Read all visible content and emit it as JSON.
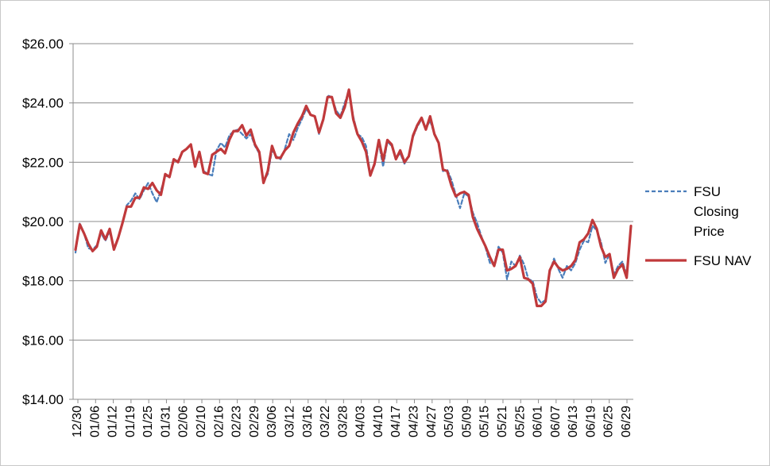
{
  "chart_data": {
    "type": "line",
    "title": "",
    "xlabel": "",
    "ylabel": "",
    "ylim": [
      14,
      26
    ],
    "y_ticks": [
      14,
      16,
      18,
      20,
      22,
      24,
      26
    ],
    "y_tick_labels": [
      "$14.00",
      "$16.00",
      "$18.00",
      "$20.00",
      "$22.00",
      "$24.00",
      "$26.00"
    ],
    "x_tick_labels": [
      "12/30",
      "01/06",
      "01/12",
      "01/19",
      "01/25",
      "01/31",
      "02/06",
      "02/10",
      "02/16",
      "02/23",
      "02/29",
      "03/06",
      "03/12",
      "03/16",
      "03/22",
      "03/28",
      "04/03",
      "04/10",
      "04/17",
      "04/23",
      "04/27",
      "05/03",
      "05/09",
      "05/15",
      "05/21",
      "05/25",
      "06/01",
      "06/07",
      "06/13",
      "06/19",
      "06/25",
      "06/29"
    ],
    "grid": true,
    "legend_position": "right",
    "series": [
      {
        "name": "FSU Closing Price",
        "color": "#4a7ebb",
        "dash": "dashed",
        "values": [
          18.95,
          19.95,
          19.6,
          19.1,
          19.05,
          19.2,
          19.6,
          19.35,
          19.65,
          19.1,
          19.45,
          19.95,
          20.55,
          20.7,
          20.95,
          20.75,
          21.05,
          21.3,
          20.95,
          20.65,
          21.05,
          21.55,
          21.5,
          22.05,
          22.05,
          22.35,
          22.45,
          22.6,
          21.9,
          22.3,
          21.7,
          21.6,
          21.55,
          22.4,
          22.65,
          22.5,
          22.9,
          23.05,
          23.1,
          22.95,
          22.8,
          22.95,
          22.55,
          22.3,
          21.35,
          21.6,
          22.4,
          22.2,
          22.1,
          22.45,
          22.95,
          22.75,
          23.15,
          23.45,
          23.8,
          23.6,
          23.55,
          22.95,
          23.45,
          24.25,
          24.2,
          23.75,
          23.55,
          24.0,
          24.4,
          23.55,
          22.95,
          22.85,
          22.55,
          21.6,
          21.9,
          22.65,
          21.85,
          22.7,
          22.55,
          22.15,
          22.3,
          21.95,
          22.2,
          22.85,
          23.2,
          23.45,
          23.15,
          23.4,
          22.95,
          22.65,
          21.7,
          21.75,
          21.4,
          20.9,
          20.45,
          20.95,
          20.85,
          20.3,
          19.95,
          19.5,
          19.1,
          18.6,
          18.55,
          19.15,
          18.95,
          18.05,
          18.65,
          18.5,
          18.85,
          18.55,
          18.05,
          18.0,
          17.45,
          17.25,
          17.35,
          18.3,
          18.75,
          18.4,
          18.1,
          18.5,
          18.35,
          18.6,
          19.05,
          19.35,
          19.3,
          19.85,
          19.7,
          19.3,
          18.6,
          18.9,
          18.2,
          18.5,
          18.65,
          18.2,
          19.85
        ]
      },
      {
        "name": "FSU NAV",
        "color": "#c0393b",
        "dash": "solid",
        "values": [
          19.05,
          19.9,
          19.6,
          19.25,
          19.0,
          19.15,
          19.7,
          19.4,
          19.75,
          19.05,
          19.45,
          19.95,
          20.5,
          20.5,
          20.8,
          20.8,
          21.15,
          21.1,
          21.3,
          21.05,
          20.9,
          21.6,
          21.5,
          22.1,
          22.0,
          22.35,
          22.45,
          22.6,
          21.85,
          22.35,
          21.65,
          21.6,
          22.25,
          22.35,
          22.45,
          22.3,
          22.75,
          23.05,
          23.05,
          23.25,
          22.9,
          23.1,
          22.6,
          22.35,
          21.3,
          21.7,
          22.55,
          22.15,
          22.15,
          22.4,
          22.55,
          23.0,
          23.3,
          23.55,
          23.9,
          23.6,
          23.55,
          23.0,
          23.45,
          24.2,
          24.2,
          23.65,
          23.5,
          23.85,
          24.45,
          23.45,
          22.95,
          22.7,
          22.35,
          21.55,
          21.95,
          22.75,
          22.05,
          22.75,
          22.6,
          22.1,
          22.4,
          22.0,
          22.2,
          22.9,
          23.25,
          23.5,
          23.1,
          23.55,
          22.95,
          22.65,
          21.75,
          21.7,
          21.2,
          20.85,
          20.95,
          21.0,
          20.9,
          20.15,
          19.75,
          19.45,
          19.15,
          18.8,
          18.5,
          19.05,
          19.05,
          18.35,
          18.4,
          18.5,
          18.8,
          18.1,
          18.05,
          17.9,
          17.15,
          17.15,
          17.3,
          18.35,
          18.65,
          18.45,
          18.35,
          18.4,
          18.5,
          18.7,
          19.3,
          19.4,
          19.6,
          20.05,
          19.75,
          19.15,
          18.8,
          18.9,
          18.1,
          18.4,
          18.55,
          18.1,
          19.85
        ]
      }
    ]
  },
  "legend": {
    "items": [
      {
        "lines": [
          "FSU",
          "Closing",
          "Price"
        ]
      },
      {
        "lines": [
          "FSU NAV"
        ]
      }
    ]
  }
}
